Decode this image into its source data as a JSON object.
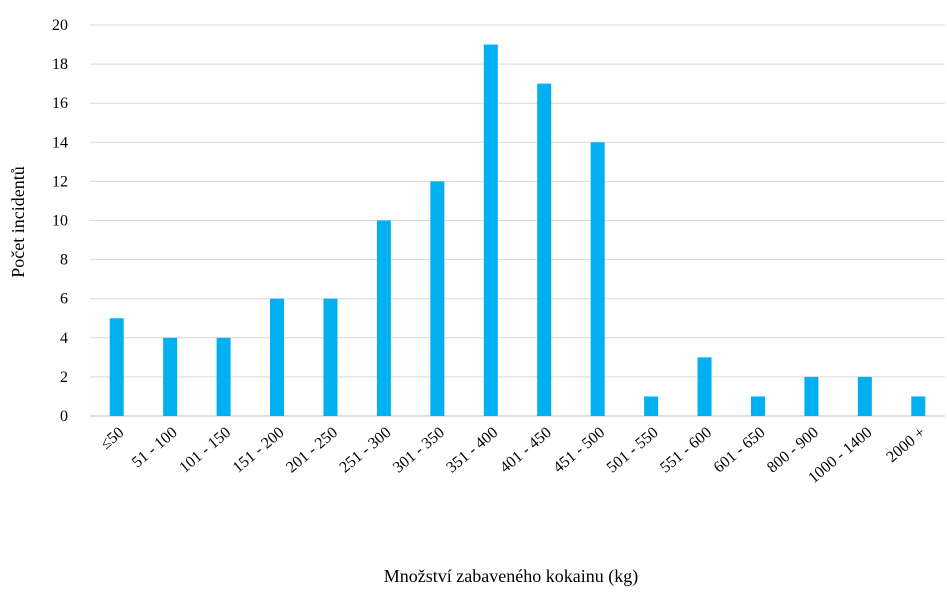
{
  "chart_data": {
    "type": "bar",
    "categories": [
      "≤50",
      "51 - 100",
      "101 - 150",
      "151 - 200",
      "201 - 250",
      "251 - 300",
      "301 - 350",
      "351 - 400",
      "401 - 450",
      "451 - 500",
      "501 - 550",
      "551 - 600",
      "601 - 650",
      "800 - 900",
      "1000 - 1400",
      "2000 +"
    ],
    "values": [
      5,
      4,
      4,
      6,
      6,
      10,
      12,
      19,
      17,
      14,
      1,
      3,
      1,
      2,
      2,
      1
    ],
    "title": "",
    "xlabel": "Množství zabaveného kokainu (kg)",
    "ylabel": "Počet incidentů",
    "ylim": [
      0,
      20
    ],
    "yticks": [
      "0",
      "2",
      "4",
      "6",
      "8",
      "10",
      "12",
      "14",
      "16",
      "18",
      "20"
    ],
    "grid": true,
    "bar_color": "#00b0f0",
    "grid_color": "#d9d9d9"
  }
}
